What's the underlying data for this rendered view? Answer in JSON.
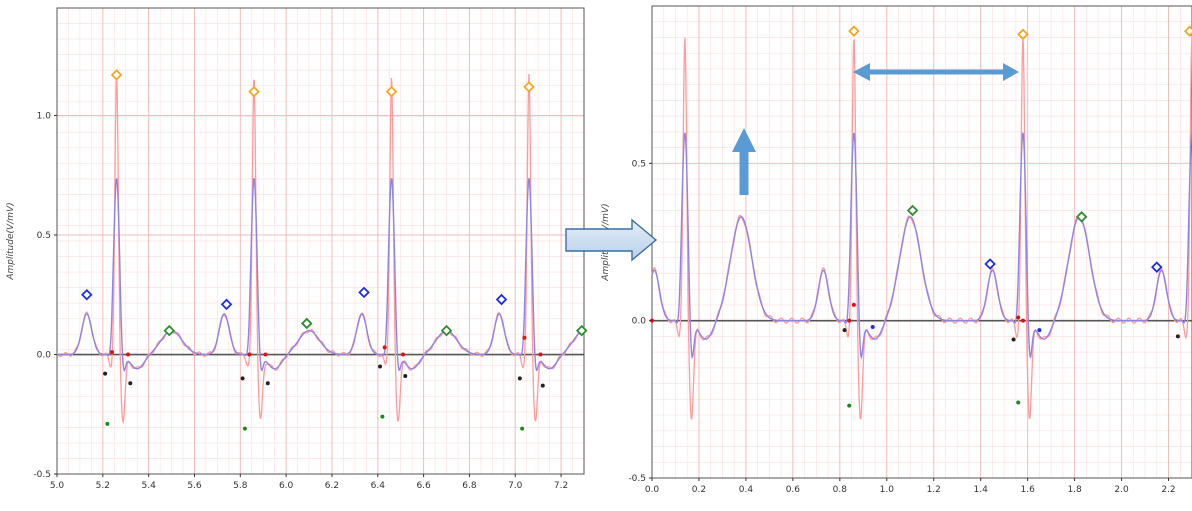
{
  "colors": {
    "grid_major": "#f6bcbc",
    "grid_minor": "#fbe3e3",
    "raw_signal": "#ff9b9b",
    "filtered_signal": "#8f84e6",
    "zero_line": "#555555",
    "r_peak": "#f5a623",
    "p_wave": "#1f2ee0",
    "t_wave": "#2e8b2e",
    "q_point": "#e01010",
    "s_point": "#1a8a1a",
    "dark_point": "#222222",
    "arrow": "#5b9bd5"
  },
  "chart_data": [
    {
      "type": "line",
      "ylabel": "Amplitude(V/mV)",
      "xlim": [
        5.0,
        7.3
      ],
      "ylim": [
        -0.5,
        1.45
      ],
      "xticks": [
        "5.0",
        "5.2",
        "5.4",
        "5.6",
        "5.8",
        "6.0",
        "6.2",
        "6.4",
        "6.6",
        "6.8",
        "7.0",
        "7.2"
      ],
      "yticks": [
        "-0.5",
        "0.0",
        "0.5",
        "1.0"
      ],
      "grid": true,
      "beats": [
        5.26,
        5.86,
        6.46,
        7.06
      ],
      "beat_params": {
        "r": 1.17,
        "filt_r": 0.74,
        "p": 0.17,
        "t": 0.1,
        "q": -0.05,
        "s": -0.27,
        "filt_s": -0.1
      },
      "markers": {
        "r_peaks": [
          [
            5.26,
            1.17
          ],
          [
            5.86,
            1.1
          ],
          [
            6.46,
            1.1
          ],
          [
            7.06,
            1.12
          ]
        ],
        "p_waves": [
          [
            5.13,
            0.25
          ],
          [
            5.74,
            0.21
          ],
          [
            6.34,
            0.26
          ],
          [
            6.94,
            0.23
          ]
        ],
        "t_waves": [
          [
            5.49,
            0.1
          ],
          [
            6.09,
            0.13
          ],
          [
            6.7,
            0.1
          ],
          [
            7.29,
            0.1
          ]
        ],
        "q_points": [
          [
            5.24,
            0.01
          ],
          [
            5.84,
            0.0
          ],
          [
            6.43,
            0.03
          ],
          [
            7.04,
            0.07
          ],
          [
            5.31,
            0.0
          ],
          [
            5.91,
            0.0
          ],
          [
            6.51,
            0.0
          ],
          [
            7.11,
            0.0
          ]
        ],
        "s_points": [
          [
            5.22,
            -0.29
          ],
          [
            5.82,
            -0.31
          ],
          [
            6.42,
            -0.26
          ],
          [
            7.03,
            -0.31
          ]
        ],
        "dark_points": [
          [
            5.21,
            -0.08
          ],
          [
            5.81,
            -0.1
          ],
          [
            6.41,
            -0.05
          ],
          [
            7.02,
            -0.1
          ],
          [
            5.32,
            -0.12
          ],
          [
            5.92,
            -0.12
          ],
          [
            6.52,
            -0.09
          ],
          [
            7.12,
            -0.13
          ]
        ]
      }
    },
    {
      "type": "line",
      "ylabel": "Amplitude(V/mV)",
      "xlim": [
        0.0,
        2.3
      ],
      "ylim": [
        -0.5,
        1.0
      ],
      "xticks": [
        "0.0",
        "0.2",
        "0.4",
        "0.6",
        "0.8",
        "1.0",
        "1.2",
        "1.4",
        "1.6",
        "1.8",
        "2.0",
        "2.2"
      ],
      "yticks": [
        "-0.5",
        "0.0",
        "0.5"
      ],
      "grid": true,
      "beats": [
        0.14,
        0.86,
        1.58,
        2.3
      ],
      "beat_params": {
        "r": 0.9,
        "filt_r": 0.6,
        "p": 0.16,
        "t": 0.33,
        "q": -0.05,
        "s": -0.3,
        "filt_s": -0.15
      },
      "markers": {
        "r_peaks": [
          [
            0.86,
            0.92
          ],
          [
            1.58,
            0.91
          ],
          [
            2.29,
            0.92
          ]
        ],
        "p_waves": [
          [
            1.44,
            0.18
          ],
          [
            2.15,
            0.17
          ]
        ],
        "t_waves": [
          [
            1.11,
            0.35
          ],
          [
            1.83,
            0.33
          ]
        ],
        "q_points": [
          [
            0.0,
            0.0
          ],
          [
            0.86,
            0.05
          ],
          [
            0.84,
            0.0
          ],
          [
            1.56,
            0.01
          ],
          [
            1.58,
            0.0
          ]
        ],
        "s_points": [
          [
            0.84,
            -0.27
          ],
          [
            1.56,
            -0.26
          ]
        ],
        "dark_points": [
          [
            0.82,
            -0.03
          ],
          [
            1.54,
            -0.06
          ],
          [
            2.24,
            -0.05
          ]
        ],
        "blue_points": [
          [
            0.94,
            -0.02
          ],
          [
            1.65,
            -0.03
          ]
        ]
      }
    }
  ]
}
